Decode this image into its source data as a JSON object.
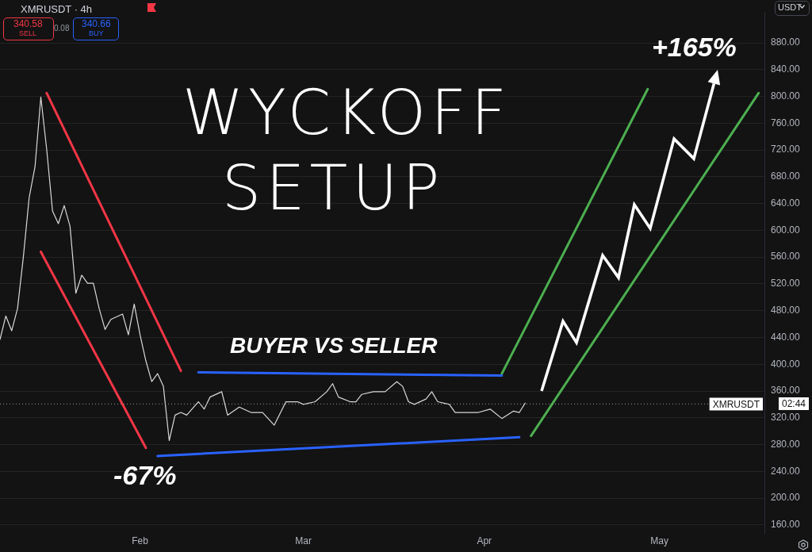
{
  "chart_data": {
    "type": "line",
    "title": "XMRUSDT · 4h",
    "x": [
      "--01-08",
      "--01-09",
      "--01-10",
      "--01-11",
      "--01-12",
      "--01-13",
      "--01-14",
      "--01-15",
      "--01-16",
      "--01-17",
      "--01-18",
      "--01-19",
      "--01-20",
      "--01-21",
      "--01-22",
      "--01-23",
      "--01-24",
      "--01-25",
      "--01-26",
      "--01-27",
      "--01-29",
      "--01-30",
      "--01-31",
      "--02-01",
      "--02-02",
      "--02-03",
      "--02-04",
      "--02-05",
      "--02-06",
      "--02-07",
      "--02-08",
      "--02-09",
      "--02-11",
      "--02-12",
      "--02-13",
      "--02-15",
      "--02-16",
      "--02-18",
      "--02-20",
      "--02-22",
      "--02-24",
      "--02-26",
      "--02-28",
      "--03-01",
      "--03-03",
      "--03-05",
      "--03-06",
      "--03-07",
      "--03-09",
      "--03-10",
      "--03-11",
      "--03-13",
      "--03-15",
      "--03-17",
      "--03-18",
      "--03-19",
      "--03-20",
      "--03-22",
      "--03-23",
      "--03-24",
      "--03-26",
      "--03-27",
      "--03-29",
      "--03-31",
      "--04-02",
      "--04-04",
      "--04-06",
      "--04-07",
      "--04-08"
    ],
    "series": [
      {
        "color": "#d9d9d9",
        "values": [
          437,
          472,
          450,
          483,
          560,
          649,
          695,
          799,
          721,
          629,
          610,
          637,
          606,
          506,
          533,
          521,
          521,
          483,
          452,
          467,
          475,
          444,
          490,
          444,
          405,
          374,
          386,
          367,
          286,
          324,
          328,
          324,
          344,
          333,
          351,
          359,
          324,
          336,
          328,
          328,
          309,
          344,
          344,
          340,
          344,
          359,
          371,
          351,
          344,
          344,
          355,
          359,
          359,
          374,
          367,
          344,
          340,
          348,
          359,
          344,
          340,
          328,
          328,
          328,
          333,
          319,
          330,
          328,
          342
        ]
      },
      {
        "color": "#f23645",
        "x": [
          "--01-16",
          "--02-08"
        ],
        "values": [
          805,
          390
        ]
      },
      {
        "color": "#f23645",
        "x": [
          "--01-15",
          "--02-02"
        ],
        "values": [
          568,
          275
        ]
      },
      {
        "color": "#2962ff",
        "x": [
          "--02-11",
          "--04-04"
        ],
        "values": [
          388,
          383
        ]
      },
      {
        "color": "#2962ff",
        "x": [
          "--02-04",
          "--04-07"
        ],
        "values": [
          263,
          291
        ]
      },
      {
        "color": "#4caf50",
        "x": [
          "--04-04",
          "--04-29"
        ],
        "values": [
          386,
          811
        ]
      },
      {
        "color": "#4caf50",
        "x": [
          "--04-09",
          "--05-18"
        ],
        "values": [
          293,
          805
        ]
      }
    ],
    "xlim": [
      "--01-08",
      "--05-19"
    ],
    "xticks": [
      {
        "value": "--02-01",
        "label": "Feb"
      },
      {
        "value": "--03-01",
        "label": "Mar"
      },
      {
        "value": "--04-01",
        "label": "Apr"
      },
      {
        "value": "--05-01",
        "label": "May"
      }
    ],
    "ylim": [
      148,
      926
    ],
    "yticks": [
      {
        "value": 160,
        "label": "160.00"
      },
      {
        "value": 200,
        "label": "200.00"
      },
      {
        "value": 240,
        "label": "240.00"
      },
      {
        "value": 280,
        "label": "280.00"
      },
      {
        "value": 320,
        "label": "320.00"
      },
      {
        "value": 360,
        "label": "360.00"
      },
      {
        "value": 400,
        "label": "400.00"
      },
      {
        "value": 440,
        "label": "440.00"
      },
      {
        "value": 480,
        "label": "480.00"
      },
      {
        "value": 520,
        "label": "520.00"
      },
      {
        "value": 560,
        "label": "560.00"
      },
      {
        "value": 600,
        "label": "600.00"
      },
      {
        "value": 640,
        "label": "640.00"
      },
      {
        "value": 680,
        "label": "680.00"
      },
      {
        "value": 720,
        "label": "720.00"
      },
      {
        "value": 760,
        "label": "760.00"
      },
      {
        "value": 800,
        "label": "800.00"
      },
      {
        "value": 840,
        "label": "840.00"
      },
      {
        "value": 880,
        "label": "880.00"
      }
    ],
    "ref_lines": [
      {
        "axis": "y",
        "value": 340.58,
        "label": "XMRUSDT",
        "line_style": "dotted",
        "color": "#9598a1"
      }
    ],
    "annotations": [
      "WYCKOFF SETUP",
      "BUYER VS SELLER",
      "-67%",
      "+165%",
      "340.58",
      "SELL",
      "0.08",
      "340.66",
      "BUY",
      "USDT",
      "02:44"
    ],
    "grid": "y",
    "legend": false,
    "marker": "none",
    "line_style": "solid"
  }
}
